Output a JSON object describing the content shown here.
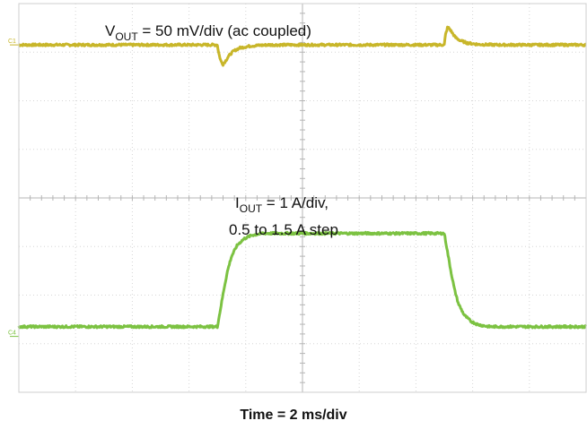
{
  "chart_data": {
    "type": "line",
    "title": "",
    "xlabel": "Time = 2 ms/div",
    "ylabel": "",
    "x_unit": "div",
    "xlim": [
      0,
      10
    ],
    "ylim": [
      0,
      8
    ],
    "grid": true,
    "grid_divisions": {
      "x": 10,
      "y": 8
    },
    "channel_markers": [
      {
        "label": "C1",
        "y": 7.15
      },
      {
        "label": "C4",
        "y": 1.15
      }
    ],
    "annotations": [
      {
        "id": "vout",
        "text_main": "V",
        "text_sub": "OUT",
        "text_rest": " = 50 mV/div (ac coupled)"
      },
      {
        "id": "iout",
        "text_main": "I",
        "text_sub": "OUT",
        "text_rest": " = 1 A/div,",
        "line2": "0.5 to 1.5 A step"
      }
    ],
    "series": [
      {
        "id": "vout",
        "color": "#c8b62a",
        "x": [
          0,
          3.5,
          3.52,
          3.56,
          3.6,
          3.65,
          3.7,
          3.78,
          3.9,
          4.1,
          4.4,
          7.5,
          7.52,
          7.56,
          7.6,
          7.65,
          7.7,
          7.78,
          7.9,
          8.1,
          8.4,
          10
        ],
        "y": [
          7.15,
          7.15,
          7.0,
          6.82,
          6.75,
          6.83,
          6.92,
          7.02,
          7.09,
          7.13,
          7.15,
          7.15,
          7.35,
          7.52,
          7.47,
          7.38,
          7.3,
          7.24,
          7.19,
          7.16,
          7.15,
          7.15
        ]
      },
      {
        "id": "iout",
        "color": "#7cc242",
        "x": [
          0,
          3.5,
          3.56,
          3.62,
          3.68,
          3.75,
          3.85,
          3.97,
          4.1,
          4.3,
          7.5,
          7.56,
          7.62,
          7.68,
          7.75,
          7.85,
          7.97,
          8.1,
          8.3,
          10
        ],
        "y": [
          1.35,
          1.35,
          1.75,
          2.15,
          2.5,
          2.8,
          3.03,
          3.16,
          3.23,
          3.27,
          3.27,
          2.87,
          2.47,
          2.12,
          1.82,
          1.59,
          1.46,
          1.39,
          1.35,
          1.35
        ]
      }
    ]
  }
}
